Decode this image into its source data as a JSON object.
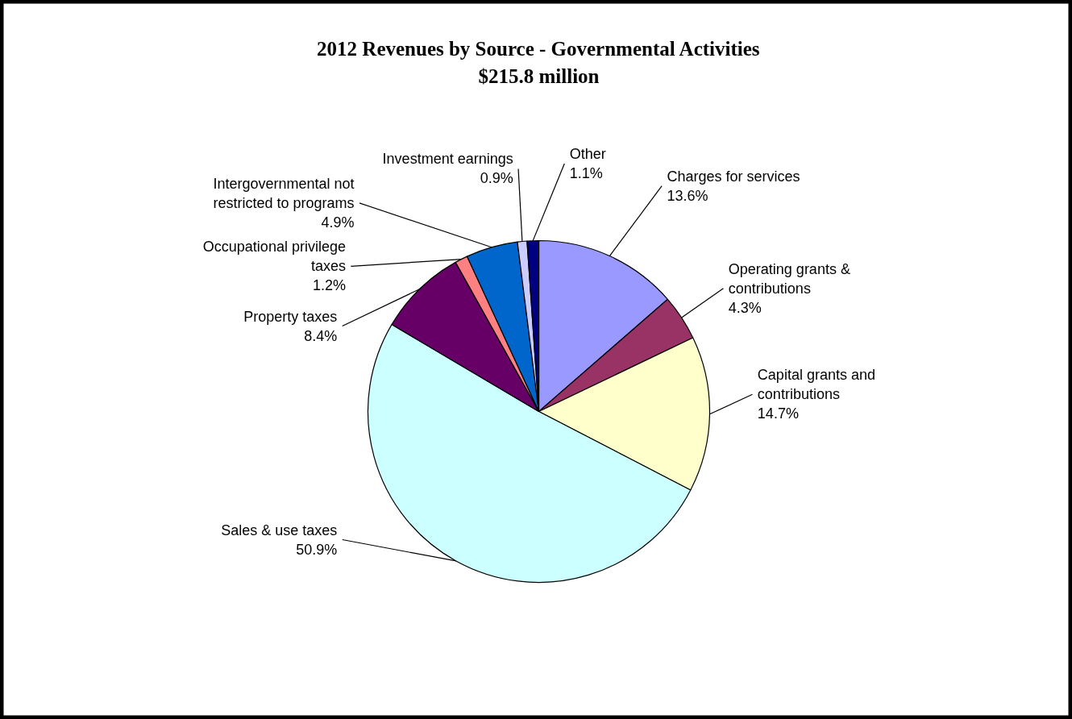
{
  "chart_data": {
    "type": "pie",
    "title": "2012 Revenues by Source - Governmental Activities",
    "subtitle": "$215.8 million",
    "categories": [
      "Charges for services",
      "Operating grants &\ncontributions",
      "Capital grants and\ncontributions",
      "Sales & use taxes",
      "Property taxes",
      "Occupational privilege\ntaxes",
      "Intergovernmental not\nrestricted to programs",
      "Investment earnings",
      "Other"
    ],
    "values": [
      13.6,
      4.3,
      14.7,
      50.9,
      8.4,
      1.2,
      4.9,
      0.9,
      1.1
    ],
    "colors": [
      "#9999ff",
      "#993366",
      "#ffffcc",
      "#ccffff",
      "#660066",
      "#ff8080",
      "#0066cc",
      "#ccccff",
      "#000080"
    ],
    "value_labels": [
      "13.6%",
      "4.3%",
      "14.7%",
      "50.9%",
      "8.4%",
      "1.2%",
      "4.9%",
      "0.9%",
      "1.1%"
    ]
  }
}
